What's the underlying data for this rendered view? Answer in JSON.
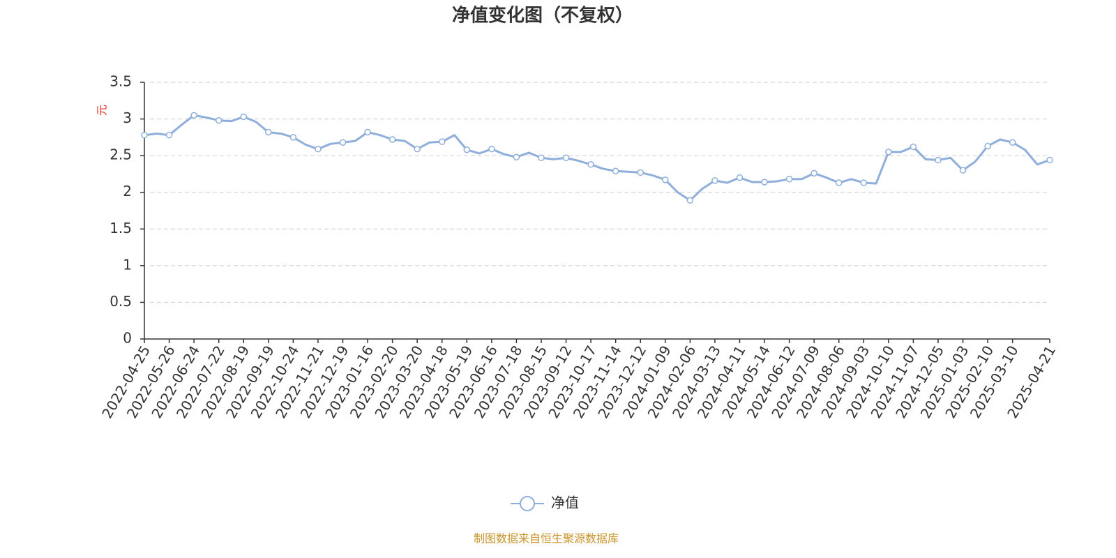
{
  "chart_data": {
    "type": "line",
    "title": "净值变化图（不复权）",
    "y_label": "元",
    "source": "制图数据来自恒生聚源数据库",
    "categories": [
      "2022-04-25",
      null,
      "2022-05-26",
      null,
      "2022-06-24",
      null,
      "2022-07-22",
      null,
      "2022-08-19",
      null,
      "2022-09-19",
      null,
      "2022-10-24",
      null,
      "2022-11-21",
      null,
      "2022-12-19",
      null,
      "2023-01-16",
      null,
      "2023-02-20",
      null,
      "2023-03-20",
      null,
      "2023-04-18",
      null,
      "2023-05-19",
      null,
      "2023-06-16",
      null,
      "2023-07-18",
      null,
      "2023-08-15",
      null,
      "2023-09-12",
      null,
      "2023-10-17",
      null,
      "2023-11-14",
      null,
      "2023-12-12",
      null,
      "2024-01-09",
      null,
      "2024-02-06",
      null,
      "2024-03-13",
      null,
      "2024-04-11",
      null,
      "2024-05-14",
      null,
      "2024-06-12",
      null,
      "2024-07-09",
      null,
      "2024-08-06",
      null,
      "2024-09-03",
      null,
      "2024-10-10",
      null,
      "2024-11-07",
      null,
      "2024-12-05",
      null,
      "2025-01-03",
      null,
      "2025-02-10",
      null,
      "2025-03-10",
      null,
      null,
      "2025-04-21"
    ],
    "series": [
      {
        "name": "净值",
        "color": "#8eaedb",
        "values": [
          2.78,
          2.8,
          2.78,
          2.92,
          3.05,
          3.02,
          2.98,
          2.97,
          3.03,
          2.96,
          2.82,
          2.8,
          2.75,
          2.65,
          2.59,
          2.66,
          2.68,
          2.7,
          2.82,
          2.78,
          2.72,
          2.7,
          2.59,
          2.68,
          2.69,
          2.78,
          2.58,
          2.53,
          2.59,
          2.52,
          2.48,
          2.54,
          2.47,
          2.45,
          2.47,
          2.43,
          2.38,
          2.32,
          2.29,
          2.28,
          2.27,
          2.23,
          2.17,
          2.0,
          1.89,
          2.05,
          2.16,
          2.13,
          2.2,
          2.14,
          2.14,
          2.15,
          2.18,
          2.18,
          2.26,
          2.2,
          2.13,
          2.18,
          2.13,
          2.12,
          2.55,
          2.55,
          2.62,
          2.45,
          2.44,
          2.47,
          2.3,
          2.42,
          2.63,
          2.72,
          2.68,
          2.58,
          2.38,
          2.44
        ]
      }
    ],
    "ylim": [
      0,
      3.5
    ],
    "yticks": [
      0,
      0.5,
      1,
      1.5,
      2,
      2.5,
      3,
      3.5
    ],
    "grid": true
  }
}
